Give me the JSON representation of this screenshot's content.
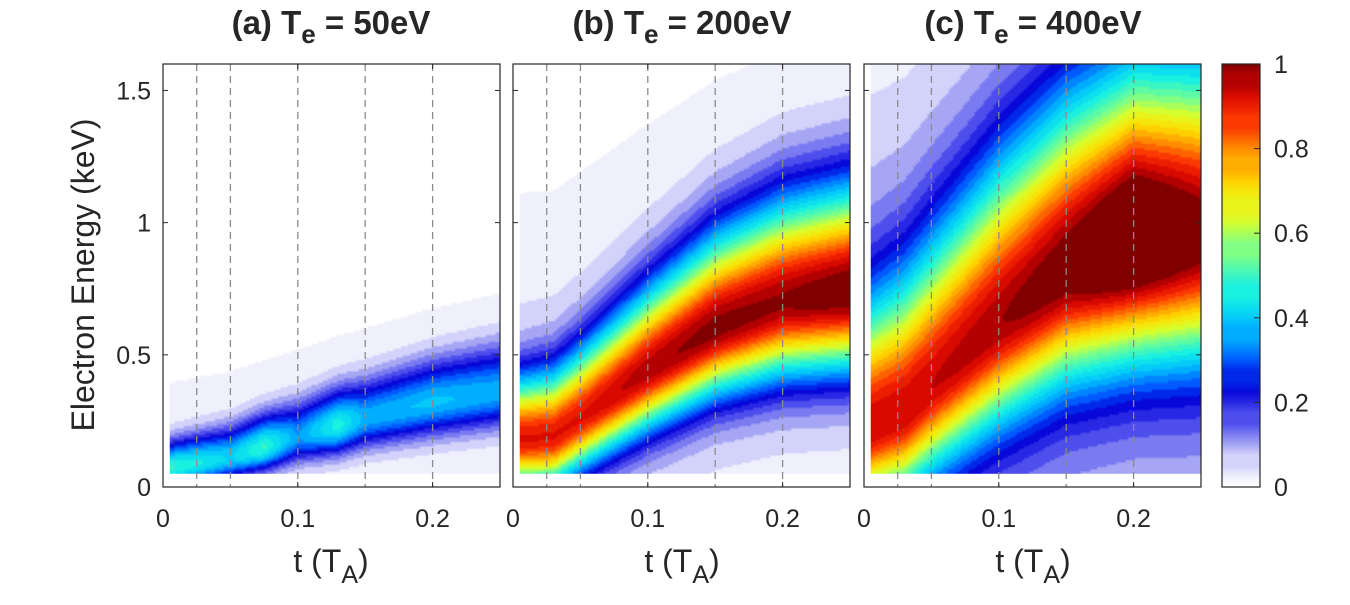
{
  "chart_data": {
    "type": "heatmap",
    "ylabel": "Electron Energy (keV)",
    "xlabel_prefix": "t (T",
    "xlabel_sub": "A",
    "xlabel_suffix": ")",
    "xlim": [
      0,
      0.25
    ],
    "ylim": [
      0,
      1.6
    ],
    "xticks": [
      "0",
      "0.1",
      "0.2"
    ],
    "xtick_values": [
      0,
      0.1,
      0.2
    ],
    "yticks": [
      "0",
      "0.5",
      "1",
      "1.5"
    ],
    "ytick_values": [
      0,
      0.5,
      1,
      1.5
    ],
    "dashed_vlines": [
      0.025,
      0.05,
      0.1,
      0.15,
      0.2
    ],
    "colorbar": {
      "range": [
        0,
        1
      ],
      "ticks": [
        "0",
        "0.2",
        "0.4",
        "0.6",
        "0.8",
        "1"
      ],
      "tick_values": [
        0,
        0.2,
        0.4,
        0.6,
        0.8,
        1
      ],
      "colormap": "jet-white"
    },
    "panels": [
      {
        "title_prefix": "(a) T",
        "title_sub": "e",
        "title_suffix": " = 50eV",
        "ridge": [
          [
            0.005,
            0.07
          ],
          [
            0.05,
            0.11
          ],
          [
            0.1,
            0.19
          ],
          [
            0.15,
            0.26
          ],
          [
            0.2,
            0.32
          ],
          [
            0.25,
            0.36
          ]
        ],
        "sigma_low": [
          [
            0.005,
            0.05
          ],
          [
            0.05,
            0.055
          ],
          [
            0.1,
            0.065
          ],
          [
            0.15,
            0.075
          ],
          [
            0.2,
            0.085
          ],
          [
            0.25,
            0.09
          ]
        ],
        "sigma_high": [
          [
            0.005,
            0.07
          ],
          [
            0.05,
            0.08
          ],
          [
            0.1,
            0.09
          ],
          [
            0.15,
            0.1
          ],
          [
            0.2,
            0.11
          ],
          [
            0.25,
            0.12
          ]
        ],
        "peak": [
          [
            0.005,
            0.46
          ],
          [
            0.03,
            0.42
          ],
          [
            0.05,
            0.38
          ],
          [
            0.075,
            0.46
          ],
          [
            0.1,
            0.32
          ],
          [
            0.13,
            0.44
          ],
          [
            0.15,
            0.34
          ],
          [
            0.2,
            0.36
          ],
          [
            0.25,
            0.34
          ]
        ],
        "halo_amp": 0.03,
        "halo_sigma": 0.3
      },
      {
        "title_prefix": "(b) T",
        "title_sub": "e",
        "title_suffix": " = 200eV",
        "ridge": [
          [
            0.005,
            0.18
          ],
          [
            0.03,
            0.19
          ],
          [
            0.05,
            0.26
          ],
          [
            0.1,
            0.44
          ],
          [
            0.15,
            0.6
          ],
          [
            0.2,
            0.7
          ],
          [
            0.25,
            0.74
          ]
        ],
        "sigma_low": [
          [
            0.005,
            0.12
          ],
          [
            0.05,
            0.13
          ],
          [
            0.1,
            0.15
          ],
          [
            0.15,
            0.17
          ],
          [
            0.2,
            0.19
          ],
          [
            0.25,
            0.2
          ]
        ],
        "sigma_high": [
          [
            0.005,
            0.16
          ],
          [
            0.05,
            0.18
          ],
          [
            0.1,
            0.21
          ],
          [
            0.15,
            0.24
          ],
          [
            0.2,
            0.26
          ],
          [
            0.25,
            0.27
          ]
        ],
        "peak": [
          [
            0.005,
            0.85
          ],
          [
            0.05,
            0.85
          ],
          [
            0.1,
            0.9
          ],
          [
            0.15,
            0.93
          ],
          [
            0.2,
            0.92
          ],
          [
            0.25,
            0.96
          ]
        ],
        "halo_amp": 0.07,
        "halo_sigma": 0.55
      },
      {
        "title_prefix": "(c) T",
        "title_sub": "e",
        "title_suffix": " = 400eV",
        "ridge": [
          [
            0.005,
            0.22
          ],
          [
            0.03,
            0.28
          ],
          [
            0.05,
            0.38
          ],
          [
            0.1,
            0.62
          ],
          [
            0.15,
            0.82
          ],
          [
            0.2,
            0.93
          ],
          [
            0.25,
            0.95
          ]
        ],
        "sigma_low": [
          [
            0.005,
            0.18
          ],
          [
            0.05,
            0.21
          ],
          [
            0.1,
            0.25
          ],
          [
            0.15,
            0.28
          ],
          [
            0.2,
            0.3
          ],
          [
            0.25,
            0.31
          ]
        ],
        "sigma_high": [
          [
            0.005,
            0.32
          ],
          [
            0.05,
            0.36
          ],
          [
            0.1,
            0.4
          ],
          [
            0.15,
            0.42
          ],
          [
            0.2,
            0.43
          ],
          [
            0.25,
            0.43
          ]
        ],
        "peak": [
          [
            0.005,
            0.8
          ],
          [
            0.05,
            0.8
          ],
          [
            0.1,
            0.83
          ],
          [
            0.15,
            0.88
          ],
          [
            0.2,
            1.0
          ],
          [
            0.25,
            0.88
          ]
        ],
        "halo_amp": 0.15,
        "halo_sigma": 0.85
      }
    ]
  }
}
